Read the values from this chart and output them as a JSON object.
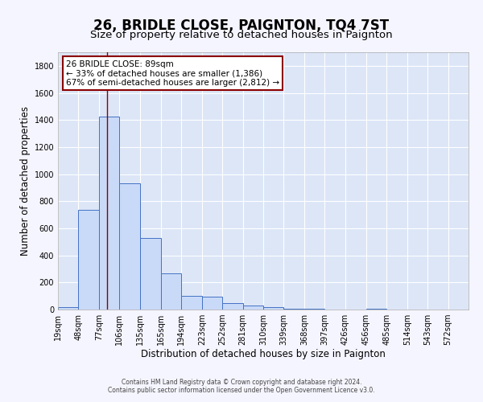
{
  "title": "26, BRIDLE CLOSE, PAIGNTON, TQ4 7ST",
  "subtitle": "Size of property relative to detached houses in Paignton",
  "xlabel": "Distribution of detached houses by size in Paignton",
  "ylabel": "Number of detached properties",
  "bar_edges": [
    19,
    48,
    77,
    106,
    135,
    165,
    194,
    223,
    252,
    281,
    310,
    339,
    368,
    397,
    426,
    456,
    485,
    514,
    543,
    572,
    601
  ],
  "bar_heights": [
    20,
    735,
    1425,
    935,
    530,
    270,
    103,
    93,
    50,
    30,
    20,
    5,
    5,
    0,
    0,
    5,
    0,
    0,
    0,
    0
  ],
  "bar_color": "#c9daf8",
  "bar_edge_color": "#4472c4",
  "property_line_x": 89,
  "property_line_color": "#8b0000",
  "annotation_text": "26 BRIDLE CLOSE: 89sqm\n← 33% of detached houses are smaller (1,386)\n67% of semi-detached houses are larger (2,812) →",
  "annotation_box_color": "#ffffff",
  "annotation_box_edge": "#8b0000",
  "ylim": [
    0,
    1900
  ],
  "yticks": [
    0,
    200,
    400,
    600,
    800,
    1000,
    1200,
    1400,
    1600,
    1800
  ],
  "plot_bg_color": "#dce6f7",
  "grid_color": "#ffffff",
  "fig_bg_color": "#f5f5ff",
  "footer_line1": "Contains HM Land Registry data © Crown copyright and database right 2024.",
  "footer_line2": "Contains public sector information licensed under the Open Government Licence v3.0.",
  "title_fontsize": 12,
  "subtitle_fontsize": 9.5,
  "axis_label_fontsize": 8.5,
  "tick_fontsize": 7,
  "annotation_fontsize": 7.5
}
